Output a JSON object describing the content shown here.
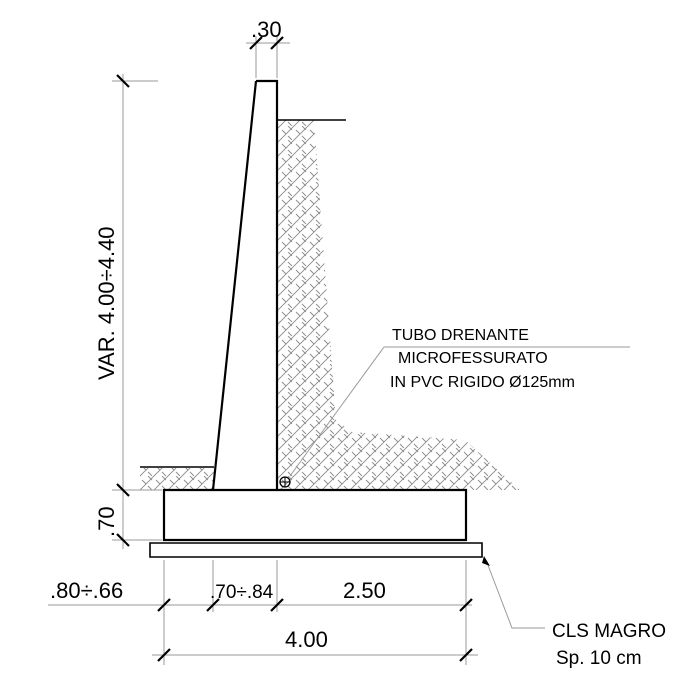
{
  "dimensions": {
    "top_width": ".30",
    "height": "VAR. 4.00÷4.40",
    "footing_thickness": ".70",
    "toe": ".80÷.66",
    "stem_base": ".70÷.84",
    "heel": "2.50",
    "total_width": "4.00"
  },
  "labels": {
    "drain_line1": "TUBO DRENANTE",
    "drain_line2": "MICROFESSURATO",
    "drain_line3": "IN PVC RIGIDO Ø125mm",
    "lean_concrete_line1": "CLS MAGRO",
    "lean_concrete_line2": "Sp. 10 cm"
  }
}
